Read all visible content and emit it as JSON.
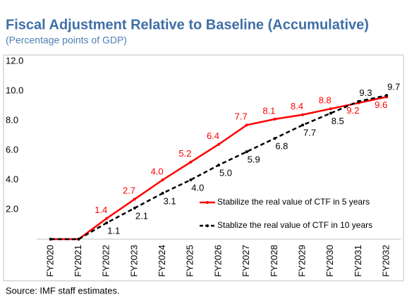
{
  "chart_data": {
    "type": "line",
    "title": "Fiscal Adjustment Relative to Baseline (Accumulative)",
    "subtitle": "(Percentage points of GDP)",
    "source": "Source: IMF staff estimates.",
    "categories": [
      "FY2020",
      "FY2021",
      "FY2022",
      "FY2023",
      "FY2024",
      "FY2025",
      "FY2026",
      "FY2027",
      "FY2028",
      "FY2029",
      "FY2030",
      "FY2031",
      "FY2032"
    ],
    "series": [
      {
        "name": "Stabilize the real value of CTF in 5 years",
        "color": "#ff0000",
        "dash": false,
        "values": [
          0,
          0,
          1.4,
          2.7,
          4.0,
          5.2,
          6.4,
          7.7,
          8.1,
          8.4,
          8.8,
          9.2,
          9.6
        ],
        "value_labels": [
          null,
          null,
          "1.4",
          "2.7",
          "4.0",
          "5.2",
          "6.4",
          "7.7",
          "8.1",
          "8.4",
          "8.8",
          "9.2",
          "9.6"
        ]
      },
      {
        "name": "Stablize the real value of CTF in 10 years",
        "color": "#000000",
        "dash": true,
        "values": [
          0,
          0,
          1.1,
          2.1,
          3.1,
          4.0,
          5.0,
          5.9,
          6.8,
          7.7,
          8.5,
          9.3,
          9.7
        ],
        "value_labels": [
          null,
          null,
          "1.1",
          "2.1",
          "3.1",
          "4.0",
          "5.0",
          "5.9",
          "6.8",
          "7.7",
          "8.5",
          "9.3",
          "9.7"
        ]
      }
    ],
    "ylim": [
      0,
      12
    ],
    "yticks": [
      {
        "value": 2,
        "label": "2.0"
      },
      {
        "value": 4,
        "label": "4.0"
      },
      {
        "value": 6,
        "label": "6.0"
      },
      {
        "value": 8,
        "label": "8.0"
      },
      {
        "value": 10,
        "label": "10.0"
      },
      {
        "value": 12,
        "label": "12.0"
      }
    ],
    "grid": false
  }
}
